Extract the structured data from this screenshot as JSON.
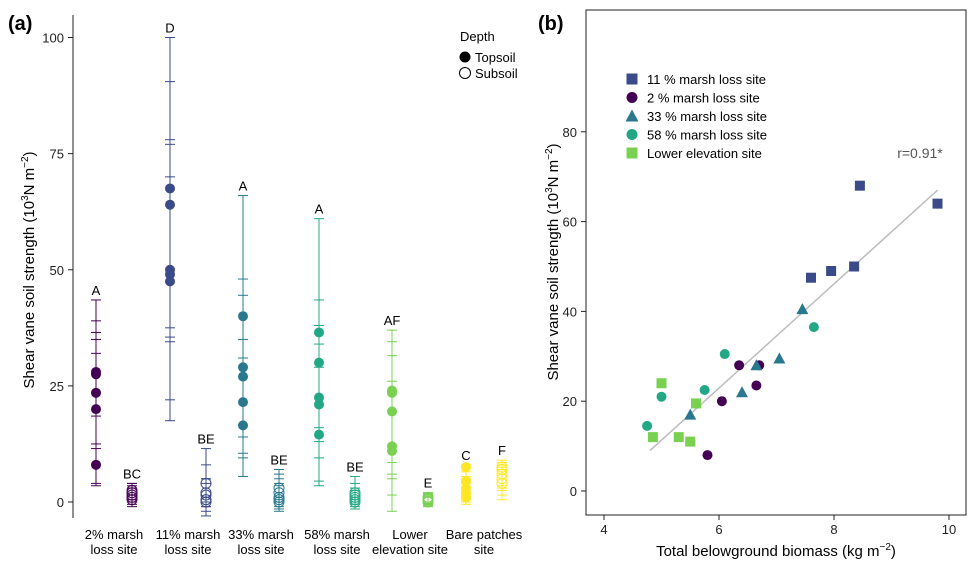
{
  "figure": {
    "panel_a_label": "(a)",
    "panel_b_label": "(b)"
  },
  "colors": {
    "2pct": "#440154",
    "11pct": "#3b4a89",
    "33pct": "#2a788e",
    "58pct": "#22a884",
    "lower": "#7ad151",
    "bare": "#fde725"
  },
  "chart_data": [
    {
      "type": "scatter",
      "panel": "(a)",
      "ylabel_main": "Shear vane soil strength  (10",
      "ylabel_exp1": "3",
      "ylabel_unit": "N m",
      "ylabel_exp2": "−2",
      "ylabel_end": ")",
      "ylim": [
        0,
        100
      ],
      "yticks": [
        "0",
        "25",
        "50",
        "75",
        "100"
      ],
      "legend": {
        "title": "Depth",
        "entries": [
          "Topsoil",
          "Subsoil"
        ],
        "position": "top-right"
      },
      "groups": [
        {
          "label_line1": "2% marsh",
          "label_line2": "loss site",
          "color_key": "2pct",
          "topsoil": {
            "values": [
              8,
              20,
              23.5,
              27.5,
              28
            ],
            "errors": [
              [
                3.5,
                43.5
              ],
              [
                4,
                39
              ],
              [
                11.5,
                36.5
              ],
              [
                12.5,
                32
              ],
              [
                18.5,
                35
              ]
            ],
            "letter": "A"
          },
          "subsoil": {
            "values": [
              0.5,
              1,
              1.5,
              2,
              2.5
            ],
            "errors": [
              [
                -1,
                4
              ],
              [
                0,
                3.5
              ],
              [
                -0.5,
                3
              ],
              [
                0.5,
                4
              ],
              [
                0,
                3
              ]
            ],
            "letter": "BC"
          }
        },
        {
          "label_line1": "11% marsh",
          "label_line2": "loss site",
          "color_key": "11pct",
          "topsoil": {
            "values": [
              47.5,
              49,
              50,
              64,
              67.5
            ],
            "errors": [
              [
                17.5,
                100
              ],
              [
                22,
                90.5
              ],
              [
                34.5,
                78
              ],
              [
                35.5,
                77
              ],
              [
                37.5,
                70
              ]
            ],
            "letter": "D"
          },
          "subsoil": {
            "values": [
              0,
              0.5,
              1.5,
              2,
              4
            ],
            "errors": [
              [
                -3,
                11.5
              ],
              [
                -2,
                8
              ],
              [
                -1,
                5
              ],
              [
                0,
                4
              ],
              [
                -1,
                5
              ]
            ],
            "letter": "BE"
          }
        },
        {
          "label_line1": "33% marsh",
          "label_line2": "loss site",
          "color_key": "33pct",
          "topsoil": {
            "values": [
              16.5,
              21.5,
              27,
              29,
              40
            ],
            "errors": [
              [
                5.5,
                66
              ],
              [
                9.5,
                48
              ],
              [
                10.5,
                44.5
              ],
              [
                14,
                35
              ],
              [
                16.5,
                31
              ]
            ],
            "letter": "A"
          },
          "subsoil": {
            "values": [
              0,
              0.5,
              1,
              2,
              3
            ],
            "errors": [
              [
                -2,
                7
              ],
              [
                -1.5,
                6
              ],
              [
                -1,
                5
              ],
              [
                0,
                4
              ],
              [
                0.5,
                3.5
              ]
            ],
            "letter": "BE"
          }
        },
        {
          "label_line1": "58% marsh",
          "label_line2": "loss site",
          "color_key": "58pct",
          "topsoil": {
            "values": [
              14.5,
              21,
              22.5,
              30,
              36.5
            ],
            "errors": [
              [
                3.5,
                61
              ],
              [
                4.5,
                43.5
              ],
              [
                9.5,
                38
              ],
              [
                13,
                34
              ],
              [
                16,
                29
              ]
            ],
            "letter": "A"
          },
          "subsoil": {
            "values": [
              0,
              0.5,
              1,
              1.5,
              2
            ],
            "errors": [
              [
                -1.5,
                5.5
              ],
              [
                -1,
                4
              ],
              [
                -0.5,
                3
              ],
              [
                0,
                3
              ],
              [
                0.5,
                2.5
              ]
            ],
            "letter": "BE"
          }
        },
        {
          "label_line1": "Lower",
          "label_line2": "elevation site",
          "color_key": "lower",
          "topsoil": {
            "values": [
              11,
              12,
              19.5,
              23.5,
              24
            ],
            "errors": [
              [
                -2,
                37
              ],
              [
                1.5,
                34.5
              ],
              [
                5,
                31.5
              ],
              [
                6,
                26
              ],
              [
                8.5,
                24
              ]
            ],
            "letter": "AF"
          },
          "subsoil": {
            "values": [
              0,
              0.2,
              0.5,
              0.7,
              1
            ],
            "errors": [
              [
                -1,
                1.5
              ],
              [
                -0.8,
                1.6
              ],
              [
                -0.5,
                1.8
              ],
              [
                -0.4,
                2
              ],
              [
                -0.3,
                2
              ]
            ],
            "letter": "E"
          }
        },
        {
          "label_line1": "Bare patches",
          "label_line2": "site",
          "color_key": "bare",
          "topsoil": {
            "values": [
              1,
              2,
              3,
              4.5,
              7.5
            ],
            "errors": [
              [
                -0.5,
                8
              ],
              [
                0,
                6.5
              ],
              [
                0.5,
                5.5
              ],
              [
                1,
                5
              ],
              [
                1.5,
                4
              ]
            ],
            "letter": "C"
          },
          "subsoil": {
            "values": [
              4,
              5,
              6,
              7,
              7.5
            ],
            "errors": [
              [
                0.5,
                9
              ],
              [
                1.5,
                8.5
              ],
              [
                2.5,
                8
              ],
              [
                3,
                7.5
              ],
              [
                3.5,
                7
              ]
            ],
            "letter": "F"
          }
        }
      ]
    },
    {
      "type": "scatter",
      "panel": "(b)",
      "xlabel_main": "Total belowground biomass (kg m",
      "xlabel_exp": "−2",
      "xlabel_end": ")",
      "ylabel_main": "Shear vane soil strength (10",
      "ylabel_exp1": "3",
      "ylabel_unit": "N m",
      "ylabel_exp2": "−2",
      "ylabel_end": ")",
      "xlim": [
        3.9,
        10.2
      ],
      "ylim": [
        -6,
        98
      ],
      "xticks": [
        "4",
        "6",
        "8",
        "10"
      ],
      "yticks": [
        "0",
        "20",
        "40",
        "60",
        "80"
      ],
      "annotation": "r=0.91*",
      "trend_line": {
        "x": [
          4.8,
          9.8
        ],
        "y": [
          9,
          67
        ]
      },
      "legend_position": "top-left",
      "series": [
        {
          "name": "11 % marsh loss site",
          "marker": "square",
          "color_key": "11pct",
          "points": [
            [
              7.6,
              47.5
            ],
            [
              7.95,
              49
            ],
            [
              8.35,
              50
            ],
            [
              8.45,
              68
            ],
            [
              9.8,
              64
            ]
          ]
        },
        {
          "name": "2 % marsh loss site",
          "marker": "circle",
          "color_key": "2pct",
          "points": [
            [
              5.8,
              8
            ],
            [
              6.05,
              20
            ],
            [
              6.35,
              28
            ],
            [
              6.65,
              23.5
            ],
            [
              6.7,
              28
            ]
          ]
        },
        {
          "name": "33 % marsh loss site",
          "marker": "triangle",
          "color_key": "33pct",
          "points": [
            [
              5.5,
              17
            ],
            [
              6.4,
              22
            ],
            [
              6.65,
              28
            ],
            [
              7.05,
              29.5
            ],
            [
              7.45,
              40.5
            ]
          ]
        },
        {
          "name": "58 % marsh loss site",
          "marker": "circle",
          "color_key": "58pct",
          "points": [
            [
              4.75,
              14.5
            ],
            [
              5.0,
              21
            ],
            [
              5.75,
              22.5
            ],
            [
              6.1,
              30.5
            ],
            [
              7.65,
              36.5
            ]
          ]
        },
        {
          "name": "Lower elevation site",
          "marker": "square",
          "color_key": "lower",
          "points": [
            [
              4.85,
              12
            ],
            [
              5.0,
              24
            ],
            [
              5.3,
              12
            ],
            [
              5.5,
              11
            ],
            [
              5.6,
              19.5
            ]
          ]
        }
      ]
    }
  ]
}
